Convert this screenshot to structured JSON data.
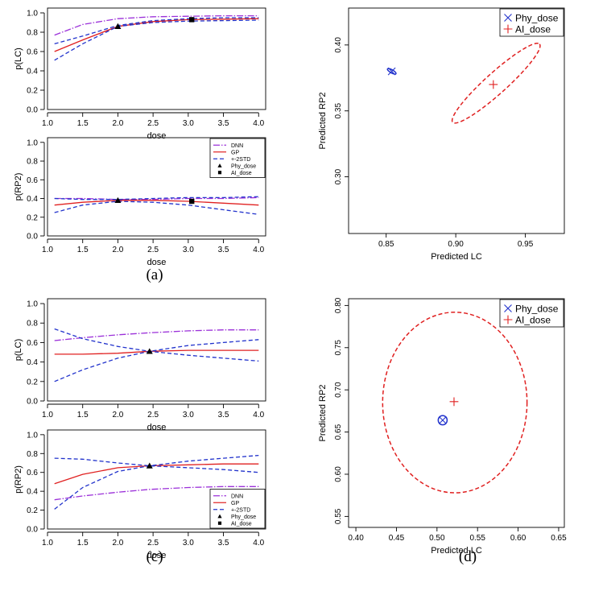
{
  "panel_labels": [
    "(a)",
    "(c)",
    "(d)"
  ],
  "chart_data": [
    {
      "id": "a_top",
      "type": "line",
      "xlabel": "dose",
      "ylabel": "p(LC)",
      "xlim": [
        1.0,
        4.1
      ],
      "ylim": [
        0,
        1.05
      ],
      "xticks": [
        1.0,
        1.5,
        2.0,
        2.5,
        3.0,
        3.5,
        4.0
      ],
      "xtick_labels": [
        "1.0",
        "1.5",
        "2.0",
        "2.5",
        "3.0",
        "3.5",
        "4.0"
      ],
      "yticks": [
        0,
        0.2,
        0.4,
        0.6,
        0.8,
        1.0
      ],
      "ytick_labels": [
        "0.0",
        "0.2",
        "0.4",
        "0.6",
        "0.8",
        "1.0"
      ],
      "x": [
        1.1,
        1.5,
        2.0,
        2.5,
        3.0,
        3.5,
        4.0
      ],
      "series": [
        {
          "role": "DNN",
          "color": "#9b30d9",
          "dash": "8 2 1.5 2",
          "values": [
            0.77,
            0.88,
            0.94,
            0.96,
            0.965,
            0.97,
            0.97
          ]
        },
        {
          "role": "GP",
          "color": "#e02020",
          "dash": "",
          "values": [
            0.6,
            0.72,
            0.86,
            0.91,
            0.93,
            0.935,
            0.94
          ]
        },
        {
          "role": "upper",
          "color": "#2233cc",
          "dash": "5 3",
          "values": [
            0.68,
            0.76,
            0.87,
            0.92,
            0.94,
            0.95,
            0.95
          ]
        },
        {
          "role": "lower",
          "color": "#2233cc",
          "dash": "5 3",
          "values": [
            0.51,
            0.68,
            0.86,
            0.9,
            0.915,
            0.92,
            0.925
          ]
        }
      ],
      "points": [
        {
          "role": "Phy_dose",
          "shape": "triangle",
          "x": 2.0,
          "y": 0.86
        },
        {
          "role": "AI_dose",
          "shape": "square",
          "x": 3.05,
          "y": 0.93
        }
      ]
    },
    {
      "id": "a_bottom",
      "type": "line",
      "xlabel": "dose",
      "ylabel": "p(RP2)",
      "xlim": [
        1.0,
        4.1
      ],
      "ylim": [
        0,
        1.05
      ],
      "xticks": [
        1.0,
        1.5,
        2.0,
        2.5,
        3.0,
        3.5,
        4.0
      ],
      "xtick_labels": [
        "1.0",
        "1.5",
        "2.0",
        "2.5",
        "3.0",
        "3.5",
        "4.0"
      ],
      "yticks": [
        0,
        0.2,
        0.4,
        0.6,
        0.8,
        1.0
      ],
      "ytick_labels": [
        "0.0",
        "0.2",
        "0.4",
        "0.6",
        "0.8",
        "1.0"
      ],
      "x": [
        1.1,
        1.5,
        2.0,
        2.5,
        3.0,
        3.5,
        4.0
      ],
      "series": [
        {
          "role": "DNN",
          "color": "#9b30d9",
          "dash": "8 2 1.5 2",
          "values": [
            0.4,
            0.4,
            0.39,
            0.39,
            0.4,
            0.4,
            0.41
          ]
        },
        {
          "role": "GP",
          "color": "#e02020",
          "dash": "",
          "values": [
            0.33,
            0.36,
            0.38,
            0.38,
            0.37,
            0.35,
            0.33
          ]
        },
        {
          "role": "upper",
          "color": "#2233cc",
          "dash": "5 3",
          "values": [
            0.4,
            0.39,
            0.39,
            0.4,
            0.41,
            0.41,
            0.42
          ]
        },
        {
          "role": "lower",
          "color": "#2233cc",
          "dash": "5 3",
          "values": [
            0.25,
            0.33,
            0.37,
            0.36,
            0.33,
            0.28,
            0.23
          ]
        }
      ],
      "points": [
        {
          "role": "Phy_dose",
          "shape": "triangle",
          "x": 2.0,
          "y": 0.38
        },
        {
          "role": "AI_dose",
          "shape": "square",
          "x": 3.05,
          "y": 0.37
        }
      ],
      "legend": {
        "placement": "top-right",
        "entries": [
          {
            "label": "DNN",
            "kind": "line",
            "color": "#9b30d9",
            "dash": "8 2 1.5 2"
          },
          {
            "label": "GP",
            "kind": "line",
            "color": "#e02020",
            "dash": ""
          },
          {
            "label": "+-2STD",
            "kind": "line",
            "color": "#2233cc",
            "dash": "5 3"
          },
          {
            "label": "Phy_dose",
            "kind": "triangle",
            "color": "#000000"
          },
          {
            "label": "AI_dose",
            "kind": "square",
            "color": "#000000"
          }
        ]
      }
    },
    {
      "id": "b",
      "type": "scatter",
      "xlabel": "Predicted LC",
      "ylabel": "Predicted RP2",
      "xlim": [
        0.823,
        0.978
      ],
      "ylim": [
        0.257,
        0.428
      ],
      "xticks": [
        0.85,
        0.9,
        0.95
      ],
      "xtick_labels": [
        "0.85",
        "0.90",
        "0.95"
      ],
      "yticks": [
        0.3,
        0.35,
        0.4
      ],
      "ytick_labels": [
        "0.30",
        "0.35",
        "0.40"
      ],
      "points": [
        {
          "role": "Phy_dose",
          "marker": "x",
          "color": "#2233cc",
          "x": 0.854,
          "y": 0.38
        },
        {
          "role": "AI_dose",
          "marker": "+",
          "color": "#e02020",
          "x": 0.927,
          "y": 0.37
        }
      ],
      "ellipses": [
        {
          "color": "#2233cc",
          "dash": "",
          "cx": 0.854,
          "cy": 0.38,
          "rx": 0.0035,
          "ry": 0.0012,
          "angle": -30
        },
        {
          "color": "#e02020",
          "dash": "5 3",
          "cx": 0.929,
          "cy": 0.371,
          "rx": 0.042,
          "ry": 0.008,
          "angle": 42
        }
      ],
      "legend": {
        "placement": "top-right",
        "entries": [
          {
            "label": "Phy_dose",
            "marker": "x",
            "color": "#2233cc"
          },
          {
            "label": "AI_dose",
            "marker": "+",
            "color": "#e02020"
          }
        ]
      }
    },
    {
      "id": "c_top",
      "type": "line",
      "xlabel": "dose",
      "ylabel": "p(LC)",
      "xlim": [
        1.0,
        4.1
      ],
      "ylim": [
        0,
        1.05
      ],
      "xticks": [
        1.0,
        1.5,
        2.0,
        2.5,
        3.0,
        3.5,
        4.0
      ],
      "xtick_labels": [
        "1.0",
        "1.5",
        "2.0",
        "2.5",
        "3.0",
        "3.5",
        "4.0"
      ],
      "yticks": [
        0,
        0.2,
        0.4,
        0.6,
        0.8,
        1.0
      ],
      "ytick_labels": [
        "0.0",
        "0.2",
        "0.4",
        "0.6",
        "0.8",
        "1.0"
      ],
      "x": [
        1.1,
        1.5,
        2.0,
        2.45,
        3.0,
        3.5,
        4.0
      ],
      "series": [
        {
          "role": "DNN",
          "color": "#9b30d9",
          "dash": "8 2 1.5 2",
          "values": [
            0.62,
            0.65,
            0.68,
            0.7,
            0.72,
            0.73,
            0.73
          ]
        },
        {
          "role": "GP",
          "color": "#e02020",
          "dash": "",
          "values": [
            0.48,
            0.48,
            0.49,
            0.51,
            0.52,
            0.52,
            0.52
          ]
        },
        {
          "role": "upper",
          "color": "#2233cc",
          "dash": "5 3",
          "values": [
            0.74,
            0.64,
            0.56,
            0.51,
            0.47,
            0.44,
            0.41
          ]
        },
        {
          "role": "lower",
          "color": "#2233cc",
          "dash": "5 3",
          "values": [
            0.2,
            0.32,
            0.44,
            0.51,
            0.57,
            0.6,
            0.63
          ]
        }
      ],
      "points": [
        {
          "role": "Phy_dose",
          "shape": "triangle",
          "x": 2.45,
          "y": 0.51
        }
      ]
    },
    {
      "id": "c_bottom",
      "type": "line",
      "xlabel": "dose",
      "ylabel": "p(RP2)",
      "xlim": [
        1.0,
        4.1
      ],
      "ylim": [
        0,
        1.05
      ],
      "xticks": [
        1.0,
        1.5,
        2.0,
        2.5,
        3.0,
        3.5,
        4.0
      ],
      "xtick_labels": [
        "1.0",
        "1.5",
        "2.0",
        "2.5",
        "3.0",
        "3.5",
        "4.0"
      ],
      "yticks": [
        0,
        0.2,
        0.4,
        0.6,
        0.8,
        1.0
      ],
      "ytick_labels": [
        "0.0",
        "0.2",
        "0.4",
        "0.6",
        "0.8",
        "1.0"
      ],
      "x": [
        1.1,
        1.5,
        2.0,
        2.45,
        3.0,
        3.5,
        4.0
      ],
      "series": [
        {
          "role": "DNN",
          "color": "#9b30d9",
          "dash": "8 2 1.5 2",
          "values": [
            0.31,
            0.35,
            0.39,
            0.42,
            0.44,
            0.45,
            0.45
          ]
        },
        {
          "role": "GP",
          "color": "#e02020",
          "dash": "",
          "values": [
            0.48,
            0.58,
            0.65,
            0.67,
            0.68,
            0.69,
            0.69
          ]
        },
        {
          "role": "upper",
          "color": "#2233cc",
          "dash": "5 3",
          "values": [
            0.75,
            0.74,
            0.7,
            0.67,
            0.65,
            0.63,
            0.6
          ]
        },
        {
          "role": "lower",
          "color": "#2233cc",
          "dash": "5 3",
          "values": [
            0.21,
            0.44,
            0.61,
            0.67,
            0.72,
            0.75,
            0.78
          ]
        }
      ],
      "points": [
        {
          "role": "Phy_dose",
          "shape": "triangle",
          "x": 2.45,
          "y": 0.67
        }
      ],
      "legend": {
        "placement": "bottom-right",
        "entries": [
          {
            "label": "DNN",
            "kind": "line",
            "color": "#9b30d9",
            "dash": "8 2 1.5 2"
          },
          {
            "label": "GP",
            "kind": "line",
            "color": "#e02020",
            "dash": ""
          },
          {
            "label": "+-2STD",
            "kind": "line",
            "color": "#2233cc",
            "dash": "5 3"
          },
          {
            "label": "Phy_dose",
            "kind": "triangle",
            "color": "#000000"
          },
          {
            "label": "AI_dose",
            "kind": "square",
            "color": "#000000"
          }
        ]
      }
    },
    {
      "id": "d",
      "type": "scatter",
      "xlabel": "Predicted LC",
      "ylabel": "Predicted RP2",
      "xlim": [
        0.391,
        0.657
      ],
      "ylim": [
        0.537,
        0.808
      ],
      "xticks": [
        0.4,
        0.45,
        0.5,
        0.55,
        0.6,
        0.65
      ],
      "xtick_labels": [
        "0.40",
        "0.45",
        "0.50",
        "0.55",
        "0.60",
        "0.65"
      ],
      "yticks": [
        0.55,
        0.6,
        0.65,
        0.7,
        0.75,
        0.8
      ],
      "ytick_labels": [
        "0.55",
        "0.60",
        "0.65",
        "0.70",
        "0.75",
        "0.80"
      ],
      "points": [
        {
          "role": "Phy_dose",
          "marker": "x",
          "color": "#2233cc",
          "x": 0.507,
          "y": 0.664
        },
        {
          "role": "AI_dose",
          "marker": "+",
          "color": "#e02020",
          "x": 0.521,
          "y": 0.686
        }
      ],
      "ellipses": [
        {
          "color": "#2233cc",
          "dash": "",
          "cx": 0.507,
          "cy": 0.664,
          "rx": 0.0055,
          "ry": 0.0055,
          "angle": 0
        },
        {
          "color": "#e02020",
          "dash": "5 3",
          "cx": 0.522,
          "cy": 0.685,
          "rx": 0.089,
          "ry": 0.107,
          "angle": 0
        }
      ],
      "legend": {
        "placement": "top-right",
        "entries": [
          {
            "label": "Phy_dose",
            "marker": "x",
            "color": "#2233cc"
          },
          {
            "label": "AI_dose",
            "marker": "+",
            "color": "#e02020"
          }
        ]
      }
    }
  ]
}
